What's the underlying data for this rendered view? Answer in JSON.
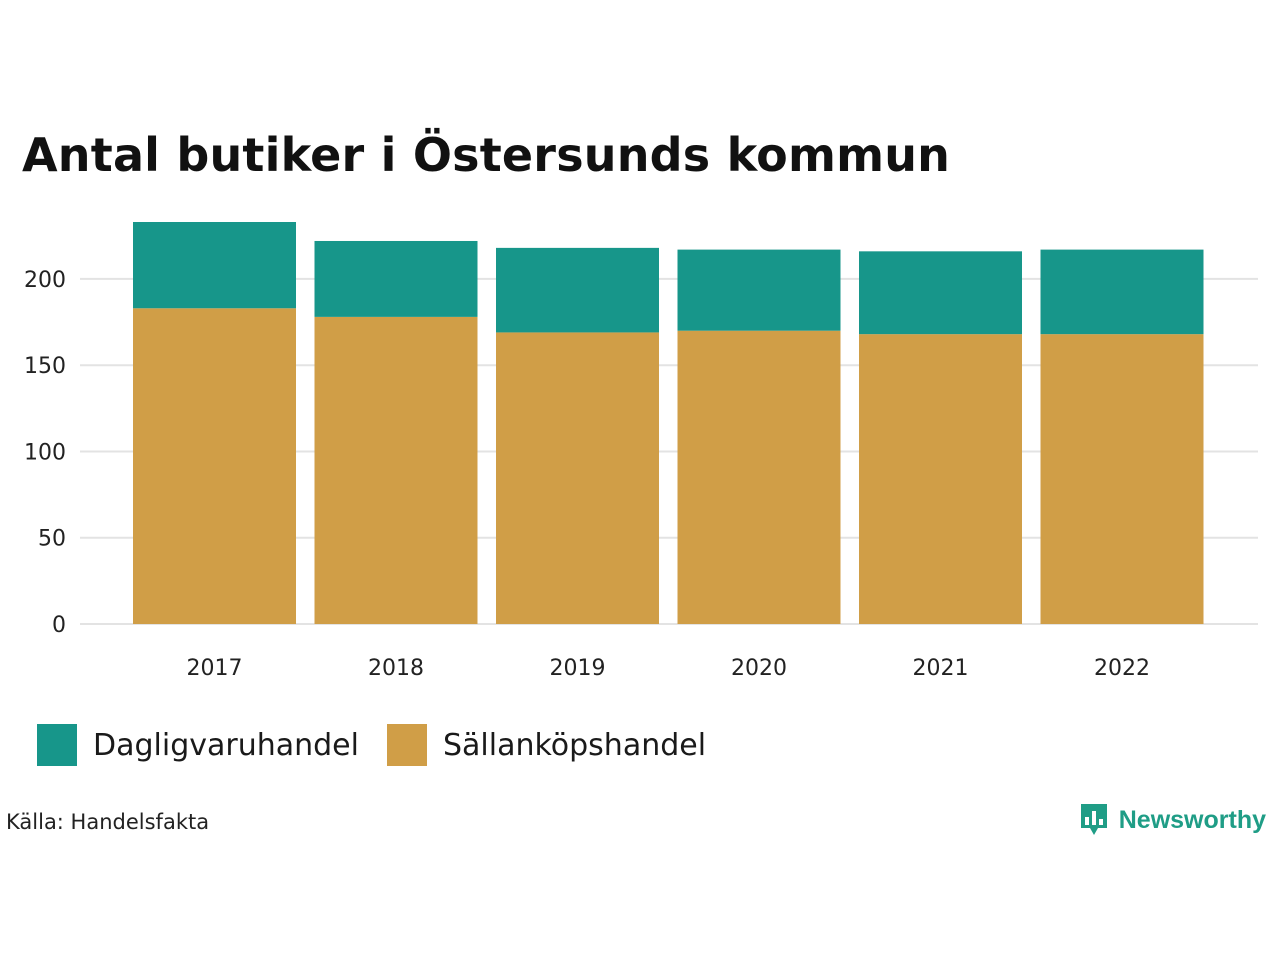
{
  "chart_data": {
    "type": "bar",
    "stacked": true,
    "title": "Antal butiker i Östersunds kommun",
    "categories": [
      "2017",
      "2018",
      "2019",
      "2020",
      "2021",
      "2022"
    ],
    "series": [
      {
        "name": "Sällanköpshandel",
        "color": "#d09e47",
        "values": [
          183,
          178,
          169,
          170,
          168,
          168
        ]
      },
      {
        "name": "Dagligvaruhandel",
        "color": "#17968a",
        "values": [
          50,
          44,
          49,
          47,
          48,
          49
        ]
      }
    ],
    "yticks": [
      0,
      50,
      100,
      150,
      200
    ],
    "ylim": [
      0,
      233
    ],
    "xlabel": "",
    "ylabel": "",
    "grid": true,
    "legend_position": "bottom-left"
  },
  "legend": [
    {
      "label": "Dagligvaruhandel",
      "color": "#17968a"
    },
    {
      "label": "Sällanköpshandel",
      "color": "#d09e47"
    }
  ],
  "source": "Källa: Handelsfakta",
  "brand": {
    "name": "Newsworthy",
    "icon": "newsworthy-logo-icon",
    "color": "#1f9d86"
  },
  "colors": {
    "grid": "#e3e3e3",
    "background": "#ffffff"
  }
}
